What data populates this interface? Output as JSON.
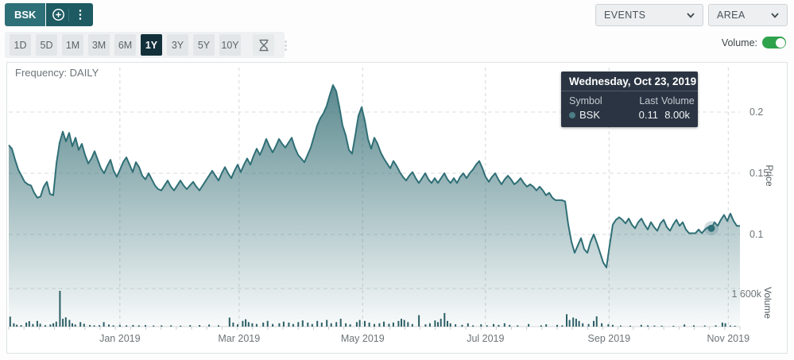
{
  "topbar": {
    "symbol": "BSK",
    "events_label": "EVENTS",
    "area_label": "AREA"
  },
  "toolbar": {
    "ranges": [
      "1D",
      "5D",
      "1M",
      "3M",
      "6M",
      "1Y",
      "3Y",
      "5Y",
      "10Y"
    ],
    "active_range": "1Y",
    "volume_label": "Volume:",
    "volume_toggle_on": true
  },
  "chart": {
    "frequency_label": "Frequency: DAILY"
  },
  "axes": {
    "price_title": "Price",
    "volume_title": "Volume"
  },
  "tooltip": {
    "date": "Wednesday, Oct 23, 2019",
    "col_symbol": "Symbol",
    "col_last": "Last",
    "col_volume": "Volume",
    "symbol": "BSK",
    "last": "0.11",
    "volume": "8.00k"
  },
  "colors": {
    "accent_teal": "#2e7077",
    "dark_teal": "#1d5a62",
    "active_dark": "#12303a",
    "line": "#2f6f76",
    "fill_top": "rgba(44,104,111,0.78)",
    "fill_bottom": "rgba(44,104,111,0.03)",
    "volume_bar": "#2c5f66",
    "toggle_green": "#2fa24c",
    "tooltip_bg": "#2a3442",
    "grid": "#d9dddf",
    "tick_text": "#6d7478"
  },
  "chart_data": {
    "type": "area",
    "symbol": "BSK",
    "frequency": "DAILY",
    "x_range": [
      "2018-11-07",
      "2019-11-04"
    ],
    "x_tick_labels": [
      "Jan 2019",
      "Mar 2019",
      "May 2019",
      "Jul 2019",
      "Sep 2019",
      "Nov 2019"
    ],
    "x_tick_pos": [
      0.152,
      0.315,
      0.484,
      0.652,
      0.821,
      0.984
    ],
    "ylabel": "Price",
    "price_ticks": [
      0.2,
      0.15,
      0.1
    ],
    "price_range": [
      0.06,
      0.24
    ],
    "volume_axis_label": "1 600k",
    "volume_tick_k": 1600,
    "highlight": {
      "index": 221,
      "price": 0.11,
      "volume": "8.00k"
    },
    "series": [
      {
        "name": "BSK",
        "prices": [
          0.173,
          0.17,
          0.161,
          0.153,
          0.148,
          0.143,
          0.141,
          0.14,
          0.134,
          0.13,
          0.131,
          0.139,
          0.143,
          0.133,
          0.132,
          0.158,
          0.175,
          0.184,
          0.176,
          0.183,
          0.172,
          0.179,
          0.169,
          0.174,
          0.165,
          0.158,
          0.162,
          0.168,
          0.161,
          0.154,
          0.15,
          0.156,
          0.161,
          0.152,
          0.147,
          0.153,
          0.159,
          0.163,
          0.157,
          0.151,
          0.159,
          0.155,
          0.148,
          0.145,
          0.15,
          0.145,
          0.14,
          0.137,
          0.136,
          0.14,
          0.144,
          0.139,
          0.136,
          0.14,
          0.144,
          0.14,
          0.137,
          0.14,
          0.143,
          0.139,
          0.136,
          0.14,
          0.144,
          0.148,
          0.152,
          0.148,
          0.144,
          0.15,
          0.155,
          0.15,
          0.146,
          0.152,
          0.157,
          0.151,
          0.157,
          0.162,
          0.157,
          0.164,
          0.17,
          0.165,
          0.171,
          0.178,
          0.172,
          0.167,
          0.172,
          0.178,
          0.174,
          0.171,
          0.175,
          0.179,
          0.171,
          0.165,
          0.162,
          0.159,
          0.165,
          0.171,
          0.18,
          0.189,
          0.195,
          0.199,
          0.205,
          0.214,
          0.222,
          0.217,
          0.204,
          0.189,
          0.181,
          0.169,
          0.166,
          0.181,
          0.197,
          0.204,
          0.193,
          0.178,
          0.17,
          0.179,
          0.174,
          0.167,
          0.162,
          0.158,
          0.154,
          0.16,
          0.156,
          0.151,
          0.147,
          0.144,
          0.148,
          0.151,
          0.146,
          0.142,
          0.146,
          0.15,
          0.145,
          0.142,
          0.146,
          0.142,
          0.146,
          0.15,
          0.145,
          0.142,
          0.146,
          0.142,
          0.147,
          0.15,
          0.146,
          0.15,
          0.153,
          0.157,
          0.16,
          0.154,
          0.147,
          0.143,
          0.147,
          0.15,
          0.145,
          0.141,
          0.145,
          0.148,
          0.145,
          0.141,
          0.143,
          0.146,
          0.142,
          0.139,
          0.141,
          0.139,
          0.136,
          0.139,
          0.136,
          0.132,
          0.134,
          0.13,
          0.128,
          0.128,
          0.128,
          0.127,
          0.108,
          0.094,
          0.085,
          0.091,
          0.097,
          0.088,
          0.085,
          0.094,
          0.1,
          0.093,
          0.085,
          0.077,
          0.073,
          0.091,
          0.108,
          0.112,
          0.114,
          0.112,
          0.109,
          0.113,
          0.108,
          0.105,
          0.11,
          0.113,
          0.108,
          0.104,
          0.11,
          0.106,
          0.103,
          0.109,
          0.112,
          0.106,
          0.103,
          0.108,
          0.112,
          0.107,
          0.11,
          0.104,
          0.101,
          0.101,
          0.101,
          0.104,
          0.101,
          0.104,
          0.106,
          0.105,
          0.11,
          0.107,
          0.112,
          0.116,
          0.111,
          0.117,
          0.111,
          0.107,
          0.107
        ]
      }
    ],
    "volume_bars_k": [
      [
        0.002,
        420
      ],
      [
        0.007,
        140
      ],
      [
        0.011,
        80
      ],
      [
        0.017,
        60
      ],
      [
        0.024,
        170
      ],
      [
        0.028,
        230
      ],
      [
        0.033,
        110
      ],
      [
        0.039,
        240
      ],
      [
        0.043,
        120
      ],
      [
        0.05,
        60
      ],
      [
        0.057,
        90
      ],
      [
        0.061,
        140
      ],
      [
        0.065,
        210
      ],
      [
        0.07,
        1500
      ],
      [
        0.074,
        330
      ],
      [
        0.078,
        390
      ],
      [
        0.083,
        280
      ],
      [
        0.087,
        140
      ],
      [
        0.091,
        90
      ],
      [
        0.098,
        190
      ],
      [
        0.103,
        120
      ],
      [
        0.111,
        70
      ],
      [
        0.117,
        55
      ],
      [
        0.124,
        60
      ],
      [
        0.13,
        190
      ],
      [
        0.137,
        85
      ],
      [
        0.143,
        55
      ],
      [
        0.152,
        75
      ],
      [
        0.161,
        55
      ],
      [
        0.17,
        70
      ],
      [
        0.178,
        55
      ],
      [
        0.187,
        65
      ],
      [
        0.198,
        45
      ],
      [
        0.209,
        55
      ],
      [
        0.222,
        55
      ],
      [
        0.235,
        40
      ],
      [
        0.248,
        60
      ],
      [
        0.261,
        65
      ],
      [
        0.274,
        85
      ],
      [
        0.287,
        55
      ],
      [
        0.302,
        380
      ],
      [
        0.307,
        170
      ],
      [
        0.313,
        95
      ],
      [
        0.32,
        240
      ],
      [
        0.324,
        310
      ],
      [
        0.328,
        190
      ],
      [
        0.333,
        140
      ],
      [
        0.339,
        110
      ],
      [
        0.348,
        170
      ],
      [
        0.354,
        240
      ],
      [
        0.361,
        110
      ],
      [
        0.37,
        140
      ],
      [
        0.376,
        210
      ],
      [
        0.383,
        170
      ],
      [
        0.389,
        110
      ],
      [
        0.396,
        190
      ],
      [
        0.402,
        260
      ],
      [
        0.409,
        170
      ],
      [
        0.415,
        110
      ],
      [
        0.422,
        240
      ],
      [
        0.428,
        170
      ],
      [
        0.435,
        280
      ],
      [
        0.441,
        140
      ],
      [
        0.448,
        190
      ],
      [
        0.454,
        330
      ],
      [
        0.461,
        140
      ],
      [
        0.467,
        95
      ],
      [
        0.476,
        190
      ],
      [
        0.48,
        280
      ],
      [
        0.487,
        240
      ],
      [
        0.493,
        170
      ],
      [
        0.5,
        110
      ],
      [
        0.507,
        140
      ],
      [
        0.513,
        210
      ],
      [
        0.52,
        120
      ],
      [
        0.526,
        170
      ],
      [
        0.533,
        240
      ],
      [
        0.537,
        330
      ],
      [
        0.541,
        280
      ],
      [
        0.546,
        190
      ],
      [
        0.552,
        110
      ],
      [
        0.561,
        480
      ],
      [
        0.57,
        95
      ],
      [
        0.576,
        140
      ],
      [
        0.583,
        260
      ],
      [
        0.587,
        190
      ],
      [
        0.591,
        330
      ],
      [
        0.596,
        570
      ],
      [
        0.6,
        240
      ],
      [
        0.604,
        140
      ],
      [
        0.611,
        95
      ],
      [
        0.62,
        75
      ],
      [
        0.628,
        140
      ],
      [
        0.635,
        55
      ],
      [
        0.646,
        95
      ],
      [
        0.654,
        55
      ],
      [
        0.663,
        110
      ],
      [
        0.67,
        75
      ],
      [
        0.678,
        140
      ],
      [
        0.685,
        75
      ],
      [
        0.696,
        55
      ],
      [
        0.711,
        110
      ],
      [
        0.728,
        55
      ],
      [
        0.735,
        95
      ],
      [
        0.75,
        75
      ],
      [
        0.757,
        55
      ],
      [
        0.763,
        520
      ],
      [
        0.767,
        280
      ],
      [
        0.772,
        380
      ],
      [
        0.776,
        330
      ],
      [
        0.78,
        240
      ],
      [
        0.785,
        140
      ],
      [
        0.793,
        110
      ],
      [
        0.8,
        240
      ],
      [
        0.804,
        430
      ],
      [
        0.811,
        140
      ],
      [
        0.82,
        95
      ],
      [
        0.826,
        75
      ],
      [
        0.837,
        45
      ],
      [
        0.85,
        40
      ],
      [
        0.865,
        75
      ],
      [
        0.874,
        55
      ],
      [
        0.883,
        45
      ],
      [
        0.893,
        40
      ],
      [
        0.909,
        35
      ],
      [
        0.924,
        90
      ],
      [
        0.937,
        55
      ],
      [
        0.952,
        45
      ],
      [
        0.967,
        55
      ],
      [
        0.976,
        170
      ],
      [
        0.98,
        140
      ],
      [
        0.987,
        45
      ],
      [
        0.993,
        35
      ]
    ]
  }
}
